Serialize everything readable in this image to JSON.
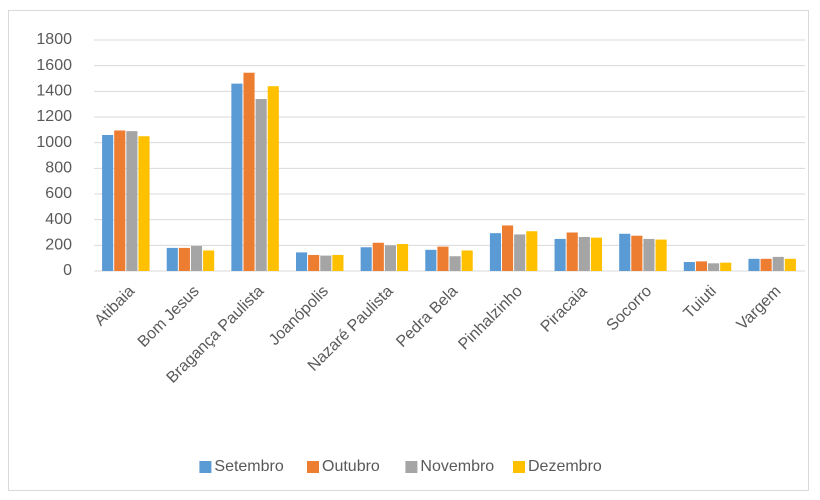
{
  "chart_data": {
    "type": "bar",
    "categories": [
      "Atibaia",
      "Bom Jesus",
      "Bragança Paulista",
      "Joanópolis",
      "Nazaré Paulista",
      "Pedra Bela",
      "Pinhalzinho",
      "Piracaia",
      "Socorro",
      "Tuiuti",
      "Vargem"
    ],
    "series": [
      {
        "name": "Setembro",
        "color": "#5B9BD5",
        "values": [
          1060,
          180,
          1460,
          145,
          185,
          165,
          295,
          250,
          290,
          70,
          95
        ]
      },
      {
        "name": "Outubro",
        "color": "#ED7D31",
        "values": [
          1095,
          180,
          1545,
          125,
          220,
          190,
          355,
          300,
          275,
          75,
          95
        ]
      },
      {
        "name": "Novembro",
        "color": "#A5A5A5",
        "values": [
          1090,
          195,
          1340,
          120,
          200,
          115,
          285,
          265,
          250,
          60,
          110
        ]
      },
      {
        "name": "Dezembro",
        "color": "#FFC000",
        "values": [
          1050,
          160,
          1440,
          125,
          210,
          160,
          310,
          260,
          245,
          65,
          95
        ]
      }
    ],
    "ylim": [
      0,
      1800
    ],
    "yticks": [
      0,
      200,
      400,
      600,
      800,
      1000,
      1200,
      1400,
      1600,
      1800
    ],
    "grid": true,
    "legend": "bottom"
  }
}
